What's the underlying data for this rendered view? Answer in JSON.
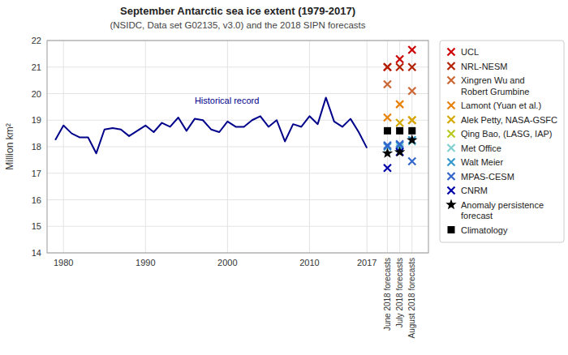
{
  "chart_data": {
    "type": "line",
    "title": "September Antarctic sea ice extent (1979-2017)",
    "subtitle": "(NSIDC, Data set G02135, v3.0) and the 2018 SIPN forecasts",
    "y_label": "Million km²",
    "xlim": [
      1978,
      2024.5
    ],
    "xticks": [
      1980,
      1990,
      2000,
      2010,
      2017,
      {
        "value": 2019.5,
        "label": "June 2018\nforecasts"
      },
      {
        "value": 2021.0,
        "label": "July 2018\nforecasts"
      },
      {
        "value": 2022.5,
        "label": "August 2018\nforecasts"
      }
    ],
    "ylim": [
      14,
      22
    ],
    "yticks": [
      14,
      15,
      16,
      17,
      18,
      19,
      20,
      21,
      22
    ],
    "grid": true,
    "legend": "right",
    "annotations": [
      {
        "text": "Historical record",
        "x": 1996,
        "y": 19.62,
        "color": "#00008B"
      }
    ],
    "series": [
      {
        "type": "line",
        "color": "#00008B",
        "x": [
          1979,
          1980,
          1981,
          1982,
          1983,
          1984,
          1985,
          1986,
          1987,
          1988,
          1989,
          1990,
          1991,
          1992,
          1993,
          1994,
          1995,
          1996,
          1997,
          1998,
          1999,
          2000,
          2001,
          2002,
          2003,
          2004,
          2005,
          2006,
          2007,
          2008,
          2009,
          2010,
          2011,
          2012,
          2013,
          2014,
          2015,
          2016,
          2017
        ],
        "values": [
          18.25,
          18.8,
          18.5,
          18.35,
          18.35,
          17.75,
          18.65,
          18.7,
          18.65,
          18.4,
          18.6,
          18.8,
          18.55,
          18.9,
          18.75,
          19.1,
          18.6,
          19.05,
          19.0,
          18.65,
          18.55,
          18.95,
          18.75,
          18.75,
          19.0,
          19.15,
          18.75,
          19.0,
          18.2,
          18.85,
          18.75,
          19.15,
          18.85,
          19.85,
          18.95,
          18.75,
          19.05,
          18.55,
          17.95
        ]
      },
      {
        "type": "scatter",
        "marker": "x",
        "name": "UCL",
        "color": "#cc0000",
        "x": [
          2019.5,
          2021.0,
          2022.5
        ],
        "values": [
          21.0,
          21.3,
          21.65
        ]
      },
      {
        "type": "scatter",
        "marker": "x",
        "name": "NRL-NESM",
        "color": "#b22000",
        "x": [
          2019.5,
          2021.0,
          2022.5
        ],
        "values": [
          21.0,
          21.0,
          21.0
        ]
      },
      {
        "type": "scatter",
        "marker": "x",
        "name": "Xingren Wu and\nRobert Grumbine",
        "color": "#cc6633",
        "x": [
          2019.5,
          2021.0,
          2022.5
        ],
        "values": [
          20.35,
          null,
          20.1
        ]
      },
      {
        "type": "scatter",
        "marker": "x",
        "name": "Lamont (Yuan et al.)",
        "color": "#e8820c",
        "x": [
          2019.5,
          2021.0,
          2022.5
        ],
        "values": [
          19.1,
          19.6,
          19.0
        ]
      },
      {
        "type": "scatter",
        "marker": "x",
        "name": "Alek Petty, NASA-GSFC",
        "color": "#d4a800",
        "x": [
          2019.5,
          2021.0,
          2022.5
        ],
        "values": [
          null,
          18.9,
          19.0
        ]
      },
      {
        "type": "scatter",
        "marker": "x",
        "name": "Qing Bao, (LASG, IAP)",
        "color": "#b8c820",
        "x": [
          2019.5,
          2021.0,
          2022.5
        ],
        "values": [
          null,
          null,
          null
        ]
      },
      {
        "type": "scatter",
        "marker": "x",
        "name": "Met Office",
        "color": "#80d0d0",
        "x": [
          2019.5,
          2021.0,
          2022.5
        ],
        "values": [
          null,
          17.95,
          18.2
        ]
      },
      {
        "type": "scatter",
        "marker": "x",
        "name": "Walt Meier",
        "color": "#3399cc",
        "x": [
          2019.5,
          2021.0,
          2022.5
        ],
        "values": [
          18.0,
          18.05,
          18.25
        ]
      },
      {
        "type": "scatter",
        "marker": "x",
        "name": "MPAS-CESM",
        "color": "#3366cc",
        "x": [
          2019.5,
          2021.0,
          2022.5
        ],
        "values": [
          18.05,
          18.1,
          17.45
        ]
      },
      {
        "type": "scatter",
        "marker": "x",
        "name": "CNRM",
        "color": "#0000aa",
        "x": [
          2019.5,
          2021.0,
          2022.5
        ],
        "values": [
          17.2,
          17.8,
          null
        ]
      },
      {
        "type": "scatter",
        "marker": "star",
        "name": "Anomaly persistence\nforecast",
        "color": "#000000",
        "x": [
          2019.5,
          2021.0,
          2022.5
        ],
        "values": [
          17.75,
          17.8,
          18.25
        ]
      },
      {
        "type": "scatter",
        "marker": "square",
        "name": "Climatology",
        "color": "#000000",
        "x": [
          2019.5,
          2021.0,
          2022.5
        ],
        "values": [
          18.6,
          18.6,
          18.6
        ]
      }
    ]
  }
}
